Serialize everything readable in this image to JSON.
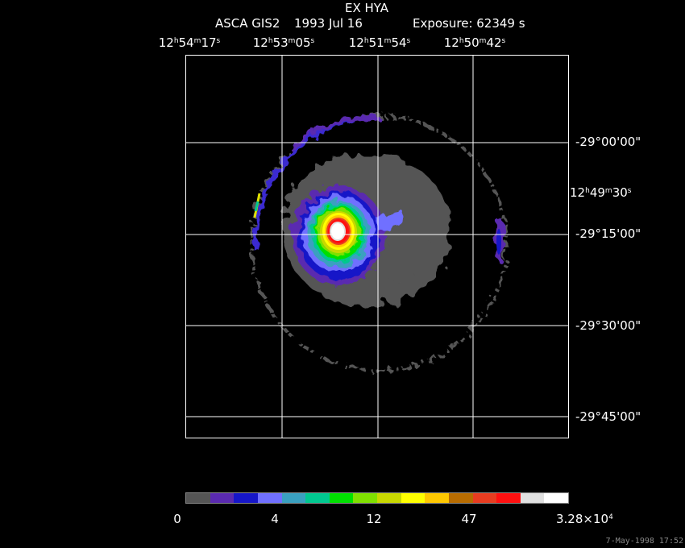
{
  "header": {
    "title": "EX HYA",
    "instrument": "ASCA GIS2",
    "date": "1993 Jul 16",
    "exposure": "Exposure: 62349 s"
  },
  "ra_labels": [
    {
      "h": "12",
      "m": "54",
      "s": "17"
    },
    {
      "h": "12",
      "m": "53",
      "s": "05"
    },
    {
      "h": "12",
      "m": "51",
      "s": "54"
    },
    {
      "h": "12",
      "m": "50",
      "s": "42"
    },
    {
      "h": "12",
      "m": "49",
      "s": "30"
    }
  ],
  "dec_labels": [
    "-29°00'00\"",
    "-29°15'00\"",
    "-29°30'00\"",
    "-29°45'00\""
  ],
  "colorbar": {
    "colors": [
      "#555555",
      "#5a2ab0",
      "#1616c8",
      "#7070ff",
      "#3aa0c0",
      "#00c890",
      "#00e000",
      "#80e000",
      "#c8d800",
      "#ffff00",
      "#ffc800",
      "#b86c00",
      "#e83c20",
      "#ff1010",
      "#e0e0e0",
      "#ffffff"
    ],
    "labels": [
      "0",
      "4",
      "12",
      "47"
    ],
    "max_label": {
      "mantissa": "3.28×10",
      "exp": "4"
    }
  },
  "footer": "7-May-1998 17:52"
}
